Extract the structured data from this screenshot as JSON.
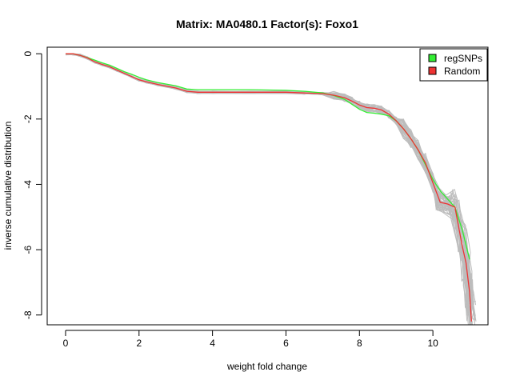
{
  "chart_data": {
    "type": "line",
    "title": "Matrix: MA0480.1 Factor(s): Foxo1",
    "xlabel": "weight fold change",
    "ylabel": "inverse cumulative distribution",
    "xlim": [
      -0.5,
      11.5
    ],
    "ylim": [
      -8.3,
      0.2
    ],
    "x_ticks": [
      0,
      2,
      4,
      6,
      8,
      10
    ],
    "y_ticks": [
      0,
      -2,
      -4,
      -6,
      -8
    ],
    "grid": false,
    "legend": {
      "position": "top-right",
      "entries": [
        "regSNPs",
        "Random"
      ]
    },
    "colors": {
      "regSNPs": "#33ee33",
      "Random": "#ee3333",
      "background_runs": "#bdbdbd"
    },
    "series": [
      {
        "name": "regSNPs",
        "x": [
          0,
          0.2,
          0.4,
          0.6,
          0.8,
          1.0,
          1.2,
          1.4,
          1.6,
          1.8,
          2.0,
          2.2,
          2.5,
          3.0,
          3.3,
          3.6,
          4.0,
          5.0,
          6.0,
          6.5,
          7.0,
          7.3,
          7.6,
          7.8,
          8.0,
          8.2,
          8.4,
          8.6,
          8.8,
          9.0,
          9.2,
          9.4,
          9.6,
          9.8,
          10.0,
          10.2,
          10.4,
          10.6,
          10.8,
          11.0
        ],
        "y": [
          0,
          0,
          -0.05,
          -0.12,
          -0.2,
          -0.28,
          -0.35,
          -0.45,
          -0.55,
          -0.63,
          -0.72,
          -0.8,
          -0.88,
          -0.98,
          -1.08,
          -1.1,
          -1.1,
          -1.1,
          -1.12,
          -1.15,
          -1.2,
          -1.28,
          -1.4,
          -1.55,
          -1.7,
          -1.8,
          -1.82,
          -1.85,
          -1.9,
          -2.05,
          -2.3,
          -2.6,
          -2.95,
          -3.4,
          -3.85,
          -4.2,
          -4.45,
          -4.7,
          -5.4,
          -6.3
        ]
      },
      {
        "name": "Random",
        "x": [
          0,
          0.2,
          0.4,
          0.6,
          0.8,
          1.0,
          1.2,
          1.4,
          1.6,
          1.8,
          2.0,
          2.2,
          2.5,
          3.0,
          3.3,
          3.6,
          4.0,
          5.0,
          6.0,
          6.5,
          7.0,
          7.3,
          7.6,
          7.8,
          8.0,
          8.2,
          8.4,
          8.6,
          8.8,
          9.0,
          9.2,
          9.4,
          9.6,
          9.8,
          10.0,
          10.2,
          10.4,
          10.6,
          10.8,
          10.9,
          11.0,
          11.05
        ],
        "y": [
          0,
          0,
          -0.05,
          -0.13,
          -0.25,
          -0.33,
          -0.4,
          -0.5,
          -0.6,
          -0.7,
          -0.8,
          -0.86,
          -0.94,
          -1.05,
          -1.15,
          -1.18,
          -1.18,
          -1.18,
          -1.18,
          -1.2,
          -1.22,
          -1.27,
          -1.35,
          -1.45,
          -1.57,
          -1.65,
          -1.67,
          -1.72,
          -1.85,
          -2.05,
          -2.3,
          -2.6,
          -2.95,
          -3.35,
          -3.95,
          -4.55,
          -4.6,
          -4.7,
          -5.9,
          -6.4,
          -7.3,
          -8.2
        ]
      }
    ]
  }
}
